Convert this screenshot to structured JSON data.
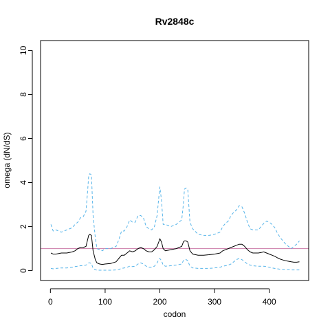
{
  "chart_data": {
    "type": "line",
    "title": "Rv2848c",
    "xlabel": "codon",
    "ylabel": "omega (dN/dS)",
    "xlim": [
      -18,
      472
    ],
    "ylim": [
      -0.45,
      10.45
    ],
    "xticks": [
      0,
      100,
      200,
      300,
      400
    ],
    "yticks": [
      0,
      2,
      4,
      6,
      8,
      10
    ],
    "grid": false,
    "reference_line": {
      "y": 1,
      "color": "#cc79a7"
    },
    "colors": {
      "mean": "#000000",
      "bounds": "#56b4e9"
    },
    "series": [
      {
        "role": "upper",
        "style": "dashed",
        "x": [
          1,
          5,
          10,
          20,
          30,
          40,
          45,
          50,
          55,
          60,
          65,
          68,
          70,
          72,
          75,
          78,
          82,
          85,
          90,
          95,
          100,
          110,
          120,
          125,
          130,
          135,
          140,
          145,
          150,
          155,
          160,
          165,
          170,
          175,
          180,
          185,
          190,
          195,
          198,
          200,
          203,
          206,
          210,
          220,
          230,
          240,
          243,
          245,
          248,
          251,
          255,
          260,
          270,
          280,
          290,
          300,
          310,
          315,
          320,
          325,
          330,
          335,
          340,
          345,
          350,
          355,
          360,
          365,
          370,
          380,
          385,
          390,
          395,
          400,
          405,
          410,
          415,
          420,
          425,
          430,
          440,
          445,
          450,
          455
        ],
        "y": [
          2.1,
          1.8,
          1.85,
          1.75,
          1.85,
          1.95,
          2.1,
          2.2,
          2.4,
          2.45,
          2.7,
          3.6,
          4.3,
          4.4,
          4.35,
          2.5,
          1.5,
          1.0,
          0.95,
          0.9,
          1.0,
          1.0,
          1.1,
          1.4,
          1.8,
          1.8,
          2.0,
          2.3,
          2.2,
          2.2,
          2.5,
          2.5,
          2.4,
          2.0,
          1.9,
          1.85,
          2.0,
          2.5,
          3.3,
          3.8,
          3.2,
          2.1,
          2.1,
          2.0,
          2.1,
          2.3,
          3.0,
          3.7,
          3.75,
          3.7,
          2.2,
          1.9,
          1.65,
          1.6,
          1.6,
          1.65,
          1.75,
          2.0,
          2.15,
          2.25,
          2.5,
          2.65,
          2.75,
          2.95,
          2.9,
          2.6,
          2.2,
          1.9,
          1.85,
          1.85,
          2.0,
          2.15,
          2.25,
          2.2,
          2.1,
          1.95,
          1.7,
          1.5,
          1.35,
          1.2,
          1.0,
          1.1,
          1.2,
          1.35
        ]
      },
      {
        "role": "mean",
        "style": "solid",
        "x": [
          1,
          5,
          10,
          20,
          30,
          40,
          45,
          50,
          55,
          60,
          65,
          68,
          70,
          72,
          75,
          78,
          82,
          85,
          90,
          95,
          100,
          110,
          120,
          125,
          130,
          135,
          140,
          145,
          150,
          155,
          160,
          165,
          170,
          175,
          180,
          185,
          190,
          195,
          198,
          200,
          203,
          206,
          210,
          220,
          230,
          240,
          243,
          245,
          248,
          251,
          255,
          260,
          270,
          280,
          290,
          300,
          310,
          315,
          320,
          325,
          330,
          335,
          340,
          345,
          350,
          355,
          360,
          365,
          370,
          380,
          385,
          390,
          395,
          400,
          405,
          410,
          415,
          420,
          425,
          430,
          440,
          445,
          450,
          455
        ],
        "y": [
          0.8,
          0.75,
          0.75,
          0.8,
          0.8,
          0.85,
          0.9,
          1.0,
          1.05,
          1.05,
          1.1,
          1.4,
          1.6,
          1.65,
          1.6,
          0.9,
          0.5,
          0.35,
          0.3,
          0.28,
          0.3,
          0.32,
          0.4,
          0.55,
          0.7,
          0.7,
          0.8,
          0.9,
          0.85,
          0.9,
          1.0,
          1.05,
          1.0,
          0.9,
          0.85,
          0.85,
          0.95,
          1.1,
          1.3,
          1.45,
          1.3,
          1.0,
          0.9,
          0.95,
          1.0,
          1.1,
          1.3,
          1.35,
          1.35,
          1.3,
          0.9,
          0.75,
          0.7,
          0.7,
          0.72,
          0.75,
          0.8,
          0.9,
          0.95,
          1.0,
          1.05,
          1.1,
          1.15,
          1.2,
          1.2,
          1.1,
          0.95,
          0.85,
          0.8,
          0.8,
          0.82,
          0.85,
          0.8,
          0.75,
          0.7,
          0.65,
          0.58,
          0.52,
          0.48,
          0.45,
          0.4,
          0.38,
          0.38,
          0.4
        ]
      },
      {
        "role": "lower",
        "style": "dashed",
        "x": [
          1,
          5,
          10,
          20,
          30,
          40,
          45,
          50,
          55,
          60,
          65,
          68,
          70,
          72,
          75,
          78,
          82,
          85,
          90,
          95,
          100,
          110,
          120,
          125,
          130,
          135,
          140,
          145,
          150,
          155,
          160,
          165,
          170,
          175,
          180,
          185,
          190,
          195,
          198,
          200,
          203,
          206,
          210,
          220,
          230,
          240,
          243,
          245,
          248,
          251,
          255,
          260,
          270,
          280,
          290,
          300,
          310,
          315,
          320,
          325,
          330,
          335,
          340,
          345,
          350,
          355,
          360,
          365,
          370,
          380,
          385,
          390,
          395,
          400,
          405,
          410,
          415,
          420,
          425,
          430,
          440,
          445,
          450,
          455
        ],
        "y": [
          0.1,
          0.08,
          0.1,
          0.12,
          0.12,
          0.15,
          0.18,
          0.2,
          0.22,
          0.22,
          0.25,
          0.3,
          0.35,
          0.35,
          0.32,
          0.1,
          0.04,
          0.02,
          0.02,
          0.02,
          0.02,
          0.02,
          0.03,
          0.05,
          0.1,
          0.12,
          0.15,
          0.2,
          0.18,
          0.2,
          0.3,
          0.35,
          0.3,
          0.2,
          0.15,
          0.15,
          0.2,
          0.35,
          0.5,
          0.55,
          0.45,
          0.25,
          0.2,
          0.22,
          0.25,
          0.3,
          0.45,
          0.5,
          0.5,
          0.45,
          0.2,
          0.12,
          0.1,
          0.1,
          0.1,
          0.12,
          0.15,
          0.2,
          0.22,
          0.25,
          0.3,
          0.4,
          0.5,
          0.55,
          0.5,
          0.4,
          0.3,
          0.25,
          0.22,
          0.2,
          0.2,
          0.2,
          0.18,
          0.15,
          0.12,
          0.1,
          0.08,
          0.06,
          0.05,
          0.04,
          0.03,
          0.03,
          0.03,
          0.03
        ]
      }
    ]
  }
}
